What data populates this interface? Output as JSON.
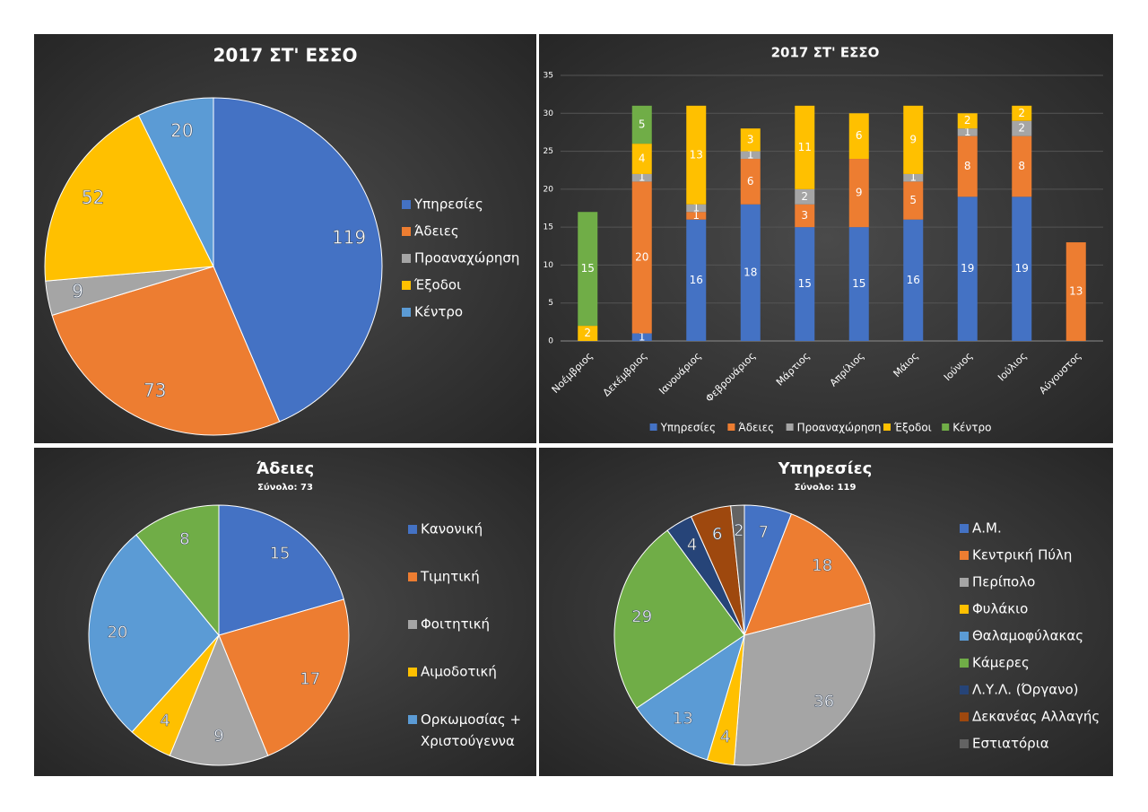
{
  "chart_data": [
    {
      "type": "pie",
      "title": "2017 ΣΤ' ΕΣΣΟ",
      "categories": [
        "Υπηρεσίες",
        "Άδειες",
        "Προαναχώρηση",
        "Έξοδοι",
        "Κέντρο"
      ],
      "values": [
        119,
        73,
        9,
        52,
        20
      ],
      "colors": [
        "#4472c4",
        "#ed7d31",
        "#a5a5a5",
        "#ffc000",
        "#5b9bd5"
      ]
    },
    {
      "type": "bar",
      "title": "2017 ΣΤ' ΕΣΣΟ",
      "stacked": true,
      "grid": true,
      "legend": "bottom",
      "categories": [
        "Νοέμβριος",
        "Δεκέμβριος",
        "Ιανουάριος",
        "Φεβρουάριος",
        "Μάρτιος",
        "Απρίλιος",
        "Μάιος",
        "Ιούνιος",
        "Ιούλιος",
        "Αύγουστος"
      ],
      "series": [
        {
          "name": "Υπηρεσίες",
          "color": "#4472c4",
          "values": [
            null,
            1,
            16,
            18,
            15,
            15,
            16,
            19,
            19,
            null
          ]
        },
        {
          "name": "Άδειες",
          "color": "#ed7d31",
          "values": [
            null,
            20,
            1,
            6,
            3,
            9,
            5,
            8,
            8,
            13
          ]
        },
        {
          "name": "Προαναχώρηση",
          "color": "#a5a5a5",
          "values": [
            null,
            1,
            1,
            1,
            2,
            null,
            1,
            1,
            2,
            null
          ]
        },
        {
          "name": "Έξοδοι",
          "color": "#ffc000",
          "values": [
            2,
            4,
            13,
            3,
            11,
            6,
            9,
            2,
            2,
            null
          ]
        },
        {
          "name": "Κέντρο",
          "color": "#70ad47",
          "values": [
            15,
            5,
            null,
            null,
            null,
            null,
            null,
            null,
            null,
            null
          ]
        }
      ],
      "ylim": [
        0,
        35
      ],
      "yticks": [
        0,
        5,
        10,
        15,
        20,
        25,
        30,
        35
      ]
    },
    {
      "type": "pie",
      "title": "Άδειες",
      "subtitle": "Σύνολο: 73",
      "categories": [
        "Κανονική",
        "Τιμητική",
        "Φοιτητική",
        "Αιμοδοτική",
        "Ορκωμοσίας + Χριστούγεννα",
        null
      ],
      "values": [
        15,
        17,
        9,
        4,
        20,
        8
      ],
      "colors": [
        "#4472c4",
        "#ed7d31",
        "#a5a5a5",
        "#ffc000",
        "#5b9bd5",
        "#70ad47"
      ]
    },
    {
      "type": "pie",
      "title": "Υπηρεσίες",
      "subtitle": "Σύνολο: 119",
      "categories": [
        "Α.Μ.",
        "Κεντρική Πύλη",
        "Περίπολο",
        "Φυλάκιο",
        "Θαλαμοφύλακας",
        "Κάμερες",
        "Λ.Υ.Λ. (Όργανο)",
        "Δεκανέας Αλλαγής",
        "Εστιατόρια"
      ],
      "values": [
        7,
        18,
        36,
        4,
        13,
        29,
        4,
        6,
        2
      ],
      "colors": [
        "#4472c4",
        "#ed7d31",
        "#a5a5a5",
        "#ffc000",
        "#5b9bd5",
        "#70ad47",
        "#264478",
        "#9e480e",
        "#636363"
      ]
    }
  ]
}
